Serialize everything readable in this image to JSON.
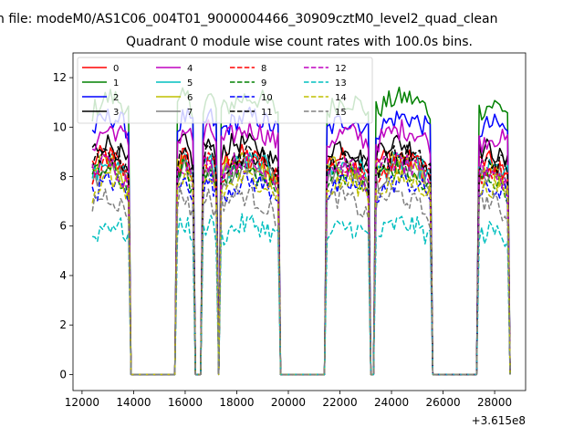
{
  "chart_data": {
    "type": "line",
    "suptitle": "n file: modeM0/AS1C06_004T01_9000004466_30909cztM0_level2_quad_clean",
    "title": "Quadrant 0 module wise count rates with 100.0s bins.",
    "xlabel": "",
    "ylabel": "",
    "x_offset_label": "+3.615e8",
    "xlim": [
      11650,
      29200
    ],
    "ylim": [
      -0.65,
      13.0
    ],
    "xticks": [
      12000,
      14000,
      16000,
      18000,
      20000,
      22000,
      24000,
      26000,
      28000
    ],
    "xtick_labels": [
      "12000",
      "14000",
      "16000",
      "18000",
      "20000",
      "22000",
      "24000",
      "26000",
      "28000"
    ],
    "yticks": [
      0,
      2,
      4,
      6,
      8,
      10,
      12
    ],
    "ytick_labels": [
      "0",
      "2",
      "4",
      "6",
      "8",
      "10",
      "12"
    ],
    "legend_placement": "top-left",
    "legend_columns": 4,
    "bin_seconds": 100,
    "x_start": 12400,
    "x_step": 100,
    "n_points": 163,
    "segments": [
      {
        "start": 12400,
        "end": 13850,
        "rise": 1.0
      },
      {
        "start": 15650,
        "end": 16350,
        "rise": 1.0
      },
      {
        "start": 16650,
        "end": 17250,
        "rise": 1.0
      },
      {
        "start": 17350,
        "end": 19650,
        "rise": 1.0
      },
      {
        "start": 21450,
        "end": 23150,
        "rise": 0.8
      },
      {
        "start": 23350,
        "end": 25550,
        "rise": 1.0
      },
      {
        "start": 27350,
        "end": 28550,
        "rise": 0.5
      }
    ],
    "dips": [
      {
        "x": 23250,
        "value": 0.1
      }
    ],
    "series": [
      {
        "name": "0",
        "color": "#ff0000",
        "style": "solid",
        "level": 8.2
      },
      {
        "name": "1",
        "color": "#008000",
        "style": "solid",
        "level": 10.6
      },
      {
        "name": "2",
        "color": "#0000ff",
        "style": "solid",
        "level": 9.8
      },
      {
        "name": "3",
        "color": "#000000",
        "style": "solid",
        "level": 8.7
      },
      {
        "name": "4",
        "color": "#bf00bf",
        "style": "solid",
        "level": 9.3
      },
      {
        "name": "5",
        "color": "#00bfbf",
        "style": "solid",
        "level": 8.0
      },
      {
        "name": "6",
        "color": "#bfbf00",
        "style": "solid",
        "level": 7.9
      },
      {
        "name": "7",
        "color": "#808080",
        "style": "solid",
        "level": 7.8
      },
      {
        "name": "8",
        "color": "#ff0000",
        "style": "dashed",
        "level": 8.0
      },
      {
        "name": "9",
        "color": "#008000",
        "style": "dashed",
        "level": 7.6
      },
      {
        "name": "10",
        "color": "#0000ff",
        "style": "dashed",
        "level": 7.2
      },
      {
        "name": "11",
        "color": "#000000",
        "style": "dashed",
        "level": 8.3
      },
      {
        "name": "12",
        "color": "#bf00bf",
        "style": "dashed",
        "level": 7.9
      },
      {
        "name": "13",
        "color": "#00bfbf",
        "style": "dashed",
        "level": 5.5
      },
      {
        "name": "14",
        "color": "#bfbf00",
        "style": "dashed",
        "level": 7.3
      },
      {
        "name": "15",
        "color": "#808080",
        "style": "dashed",
        "level": 6.6
      }
    ]
  }
}
